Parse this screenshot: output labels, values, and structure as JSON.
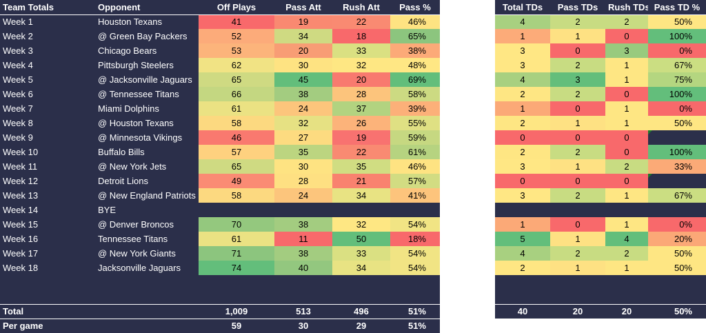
{
  "left_headers": [
    "Team Totals",
    "Opponent",
    "Off Plays",
    "Pass Att",
    "Rush Att",
    "Pass %"
  ],
  "right_headers": [
    "Total TDs",
    "Pass TDs",
    "Rush TDs",
    "Pass TD %"
  ],
  "rows": [
    {
      "week": "Week 1",
      "opp": "Houston Texans",
      "plays": "41",
      "pa": "19",
      "ra": "22",
      "pp": "46%",
      "td": "4",
      "ptd": "2",
      "rtd": "2",
      "tdp": "50%"
    },
    {
      "week": "Week 2",
      "opp": "@ Green Bay Packers",
      "plays": "52",
      "pa": "34",
      "ra": "18",
      "pp": "65%",
      "td": "1",
      "ptd": "1",
      "rtd": "0",
      "tdp": "100%"
    },
    {
      "week": "Week 3",
      "opp": "Chicago Bears",
      "plays": "53",
      "pa": "20",
      "ra": "33",
      "pp": "38%",
      "td": "3",
      "ptd": "0",
      "rtd": "3",
      "tdp": "0%"
    },
    {
      "week": "Week 4",
      "opp": "Pittsburgh Steelers",
      "plays": "62",
      "pa": "30",
      "ra": "32",
      "pp": "48%",
      "td": "3",
      "ptd": "2",
      "rtd": "1",
      "tdp": "67%"
    },
    {
      "week": "Week 5",
      "opp": "@ Jacksonville Jaguars",
      "plays": "65",
      "pa": "45",
      "ra": "20",
      "pp": "69%",
      "td": "4",
      "ptd": "3",
      "rtd": "1",
      "tdp": "75%"
    },
    {
      "week": "Week 6",
      "opp": "@ Tennessee Titans",
      "plays": "66",
      "pa": "38",
      "ra": "28",
      "pp": "58%",
      "td": "2",
      "ptd": "2",
      "rtd": "0",
      "tdp": "100%"
    },
    {
      "week": "Week 7",
      "opp": "Miami Dolphins",
      "plays": "61",
      "pa": "24",
      "ra": "37",
      "pp": "39%",
      "td": "1",
      "ptd": "0",
      "rtd": "1",
      "tdp": "0%"
    },
    {
      "week": "Week 8",
      "opp": "@ Houston Texans",
      "plays": "58",
      "pa": "32",
      "ra": "26",
      "pp": "55%",
      "td": "2",
      "ptd": "1",
      "rtd": "1",
      "tdp": "50%"
    },
    {
      "week": "Week 9",
      "opp": "@ Minnesota Vikings",
      "plays": "46",
      "pa": "27",
      "ra": "19",
      "pp": "59%",
      "td": "0",
      "ptd": "0",
      "rtd": "0",
      "tdp": ""
    },
    {
      "week": "Week 10",
      "opp": "Buffalo Bills",
      "plays": "57",
      "pa": "35",
      "ra": "22",
      "pp": "61%",
      "td": "2",
      "ptd": "2",
      "rtd": "0",
      "tdp": "100%"
    },
    {
      "week": "Week 11",
      "opp": "@ New York Jets",
      "plays": "65",
      "pa": "30",
      "ra": "35",
      "pp": "46%",
      "td": "3",
      "ptd": "1",
      "rtd": "2",
      "tdp": "33%"
    },
    {
      "week": "Week 12",
      "opp": "Detroit Lions",
      "plays": "49",
      "pa": "28",
      "ra": "21",
      "pp": "57%",
      "td": "0",
      "ptd": "0",
      "rtd": "0",
      "tdp": ""
    },
    {
      "week": "Week 13",
      "opp": "@ New England Patriots",
      "plays": "58",
      "pa": "24",
      "ra": "34",
      "pp": "41%",
      "td": "3",
      "ptd": "2",
      "rtd": "1",
      "tdp": "67%"
    },
    {
      "week": "Week 14",
      "opp": "BYE",
      "plays": "",
      "pa": "",
      "ra": "",
      "pp": "",
      "td": "",
      "ptd": "",
      "rtd": "",
      "tdp": "",
      "bye": true
    },
    {
      "week": "Week 15",
      "opp": "@ Denver Broncos",
      "plays": "70",
      "pa": "38",
      "ra": "32",
      "pp": "54%",
      "td": "1",
      "ptd": "0",
      "rtd": "1",
      "tdp": "0%"
    },
    {
      "week": "Week 16",
      "opp": "Tennessee Titans",
      "plays": "61",
      "pa": "11",
      "ra": "50",
      "pp": "18%",
      "td": "5",
      "ptd": "1",
      "rtd": "4",
      "tdp": "20%"
    },
    {
      "week": "Week 17",
      "opp": "@ New York Giants",
      "plays": "71",
      "pa": "38",
      "ra": "33",
      "pp": "54%",
      "td": "4",
      "ptd": "2",
      "rtd": "2",
      "tdp": "50%"
    },
    {
      "week": "Week 18",
      "opp": "Jacksonville Jaguars",
      "plays": "74",
      "pa": "40",
      "ra": "34",
      "pp": "54%",
      "td": "2",
      "ptd": "1",
      "rtd": "1",
      "tdp": "50%"
    }
  ],
  "colors": {
    "plays": [
      "#f8696b",
      "#fcab7a",
      "#fcb47b",
      "#f1e384",
      "#cfda82",
      "#c4d781",
      "#ebe283",
      "#fcd980",
      "#f9796f",
      "#fed17f",
      "#cfda82",
      "#fa8b74",
      "#fcd980",
      "",
      "#94c87e",
      "#ebe283",
      "#8cc57e",
      "#63be7b"
    ],
    "pa": [
      "#f98971",
      "#cfda82",
      "#f89d75",
      "#fee382",
      "#63be7b",
      "#a3cc80",
      "#fcc57c",
      "#e6e183",
      "#fddb80",
      "#bcd580",
      "#fee382",
      "#fee082",
      "#fcc57c",
      "",
      "#a3cc80",
      "#f8696b",
      "#a3cc80",
      "#93c77f"
    ],
    "ra": [
      "#f98a72",
      "#f8696b",
      "#dae082",
      "#fee783",
      "#f87a6f",
      "#fcc47c",
      "#b2d380",
      "#fcb37a",
      "#f87270",
      "#f98a72",
      "#d0dd82",
      "#f9826f",
      "#e8e383",
      "",
      "#fee783",
      "#63be7b",
      "#dae082",
      "#e8e383"
    ],
    "pp": [
      "#fee382",
      "#8cc57e",
      "#fcaa78",
      "#ffe784",
      "#63be7b",
      "#ccda82",
      "#fcb079",
      "#dfe083",
      "#c6d881",
      "#b6d380",
      "#fee382",
      "#d2dc82",
      "#fdc47c",
      "",
      "#f1e484",
      "#f8696b",
      "#f1e484",
      "#f1e484"
    ],
    "td": [
      "#a8d080",
      "#fcab79",
      "#ffe784",
      "#ffe784",
      "#a8d080",
      "#fee683",
      "#fba977",
      "#fee683",
      "#f8696b",
      "#fee683",
      "#ffe784",
      "#f8696b",
      "#ffe784",
      "",
      "#fba977",
      "#63be7b",
      "#a8d080",
      "#fee683"
    ],
    "ptd": [
      "#c8dc82",
      "#fee183",
      "#f8696b",
      "#c8dc82",
      "#63be7b",
      "#c8dc82",
      "#f8696b",
      "#fee183",
      "#f8696b",
      "#c8dc82",
      "#fee183",
      "#f8696b",
      "#c8dc82",
      "",
      "#f8696b",
      "#fee183",
      "#c8dc82",
      "#fee183"
    ],
    "rtd": [
      "#c8dc82",
      "#f8696b",
      "#98ca7e",
      "#fee683",
      "#fee683",
      "#f8696b",
      "#fee683",
      "#fee683",
      "#f8696b",
      "#f8696b",
      "#c8dc82",
      "#f8696b",
      "#fee683",
      "",
      "#fee683",
      "#63be7b",
      "#c8dc82",
      "#fee683"
    ],
    "tdp": [
      "#fee683",
      "#63be7b",
      "#f8696b",
      "#cbde82",
      "#b4d680",
      "#63be7b",
      "#f8696b",
      "#fee683",
      "#2b2f4a",
      "#63be7b",
      "#fbaa77",
      "#2b2f4a",
      "#cbde82",
      "",
      "#f8696b",
      "#fba877",
      "#fee683",
      "#fee683"
    ]
  },
  "totals": {
    "label": "Total",
    "plays": "1,009",
    "pa": "513",
    "ra": "496",
    "pp": "51%",
    "td": "40",
    "ptd": "20",
    "rtd": "20",
    "tdp": "50%"
  },
  "per_game": {
    "label": "Per game",
    "plays": "59",
    "pa": "30",
    "ra": "29",
    "pp": "51%"
  }
}
